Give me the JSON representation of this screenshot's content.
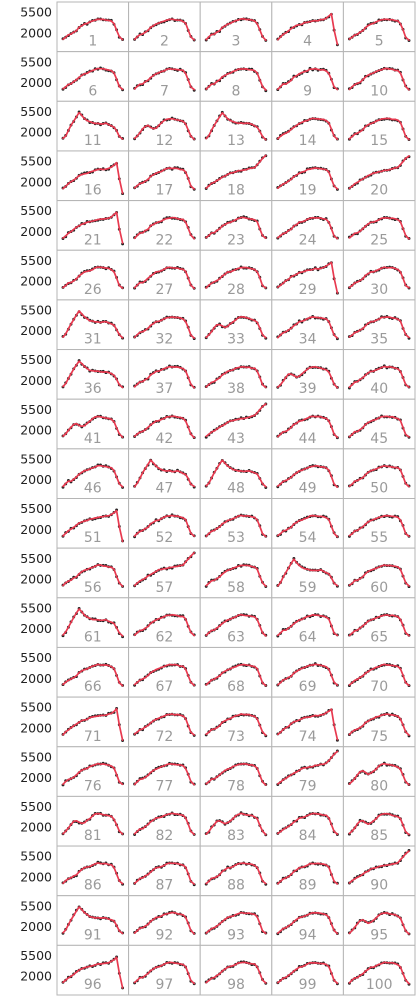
{
  "chart_data": {
    "type": "line",
    "layout": "small-multiples",
    "panel_labels": [
      "1",
      "2",
      "3",
      "4",
      "5",
      "6",
      "7",
      "8",
      "9",
      "10",
      "11",
      "12",
      "13",
      "14",
      "15",
      "16",
      "17",
      "18",
      "19",
      "20",
      "21",
      "22",
      "23",
      "24",
      "25",
      "26",
      "27",
      "28",
      "29",
      "30",
      "31",
      "32",
      "33",
      "34",
      "35",
      "36",
      "37",
      "38",
      "39",
      "40",
      "41",
      "42",
      "43",
      "44",
      "45",
      "46",
      "47",
      "48",
      "49",
      "50",
      "51",
      "52",
      "53",
      "54",
      "55",
      "56",
      "57",
      "58",
      "59",
      "60",
      "61",
      "62",
      "63",
      "64",
      "65",
      "66",
      "67",
      "68",
      "69",
      "70",
      "71",
      "72",
      "73",
      "74",
      "75",
      "76",
      "77",
      "78",
      "79",
      "80",
      "81",
      "82",
      "83",
      "84",
      "85",
      "86",
      "87",
      "88",
      "89",
      "90",
      "91",
      "92",
      "93",
      "94",
      "95",
      "96",
      "97",
      "98",
      "99",
      "100"
    ],
    "y_ticks": [
      2000,
      5500
    ],
    "y_tick_labels": [
      "2000",
      "5500"
    ],
    "ylim": [
      -500,
      6700
    ],
    "grid": false,
    "colors": {
      "fit_line": "#e8394f",
      "observed_points": "#222222",
      "panel_border": "#b5b5b5",
      "panel_label": "#9a9a9a"
    },
    "x": [
      0,
      0.045,
      0.09,
      0.135,
      0.18,
      0.225,
      0.27,
      0.315,
      0.36,
      0.405,
      0.45,
      0.495,
      0.54,
      0.585,
      0.63,
      0.675,
      0.72,
      0.765,
      0.81,
      0.855,
      0.9,
      0.945,
      1
    ],
    "base_shape": [
      900,
      1300,
      1700,
      1800,
      2100,
      2400,
      2900,
      3200,
      3500,
      3600,
      3800,
      4000,
      4200,
      4300,
      4300,
      4250,
      4200,
      4100,
      4000,
      3600,
      2500,
      1300,
      800
    ],
    "profiles": {
      "standard": [
        900,
        1300,
        1700,
        1800,
        2100,
        2400,
        2900,
        3200,
        3500,
        3600,
        3800,
        4000,
        4200,
        4300,
        4300,
        4250,
        4200,
        4100,
        4000,
        3600,
        2500,
        1300,
        800
      ],
      "early_peak": [
        900,
        1400,
        2300,
        3100,
        3900,
        4600,
        5300,
        4800,
        4300,
        4000,
        3700,
        3600,
        3500,
        3500,
        3400,
        3450,
        3500,
        3300,
        3100,
        2900,
        2200,
        1300,
        800
      ],
      "double_hump": [
        900,
        1300,
        1900,
        2500,
        3000,
        3100,
        2800,
        2600,
        2700,
        3100,
        3500,
        3900,
        4200,
        4300,
        4250,
        4150,
        4050,
        3950,
        3800,
        3400,
        2400,
        1300,
        800
      ],
      "spike_up_end": [
        900,
        1300,
        1700,
        1900,
        2200,
        2500,
        2800,
        3000,
        3300,
        3500,
        3600,
        3700,
        3800,
        3900,
        4000,
        4100,
        4200,
        4300,
        4400,
        4900,
        5400,
        5900,
        6400
      ],
      "spike_down_end": [
        900,
        1300,
        1700,
        2000,
        2300,
        2700,
        3000,
        3200,
        3400,
        3500,
        3700,
        3800,
        3900,
        4000,
        4100,
        4100,
        4200,
        4300,
        4500,
        4800,
        5200,
        2500,
        0
      ]
    },
    "panel_profiles": {
      "11": "early_peak",
      "13": "early_peak",
      "31": "early_peak",
      "36": "early_peak",
      "47": "early_peak",
      "48": "early_peak",
      "59": "early_peak",
      "61": "early_peak",
      "91": "early_peak",
      "12": "double_hump",
      "33": "double_hump",
      "39": "double_hump",
      "41": "double_hump",
      "80": "double_hump",
      "81": "double_hump",
      "83": "double_hump",
      "85": "double_hump",
      "95": "double_hump",
      "18": "spike_up_end",
      "20": "spike_up_end",
      "43": "spike_up_end",
      "57": "spike_up_end",
      "79": "spike_up_end",
      "90": "spike_up_end",
      "4": "spike_down_end",
      "16": "spike_down_end",
      "21": "spike_down_end",
      "29": "spike_down_end",
      "51": "spike_down_end",
      "71": "spike_down_end",
      "74": "spike_down_end",
      "96": "spike_down_end"
    }
  }
}
